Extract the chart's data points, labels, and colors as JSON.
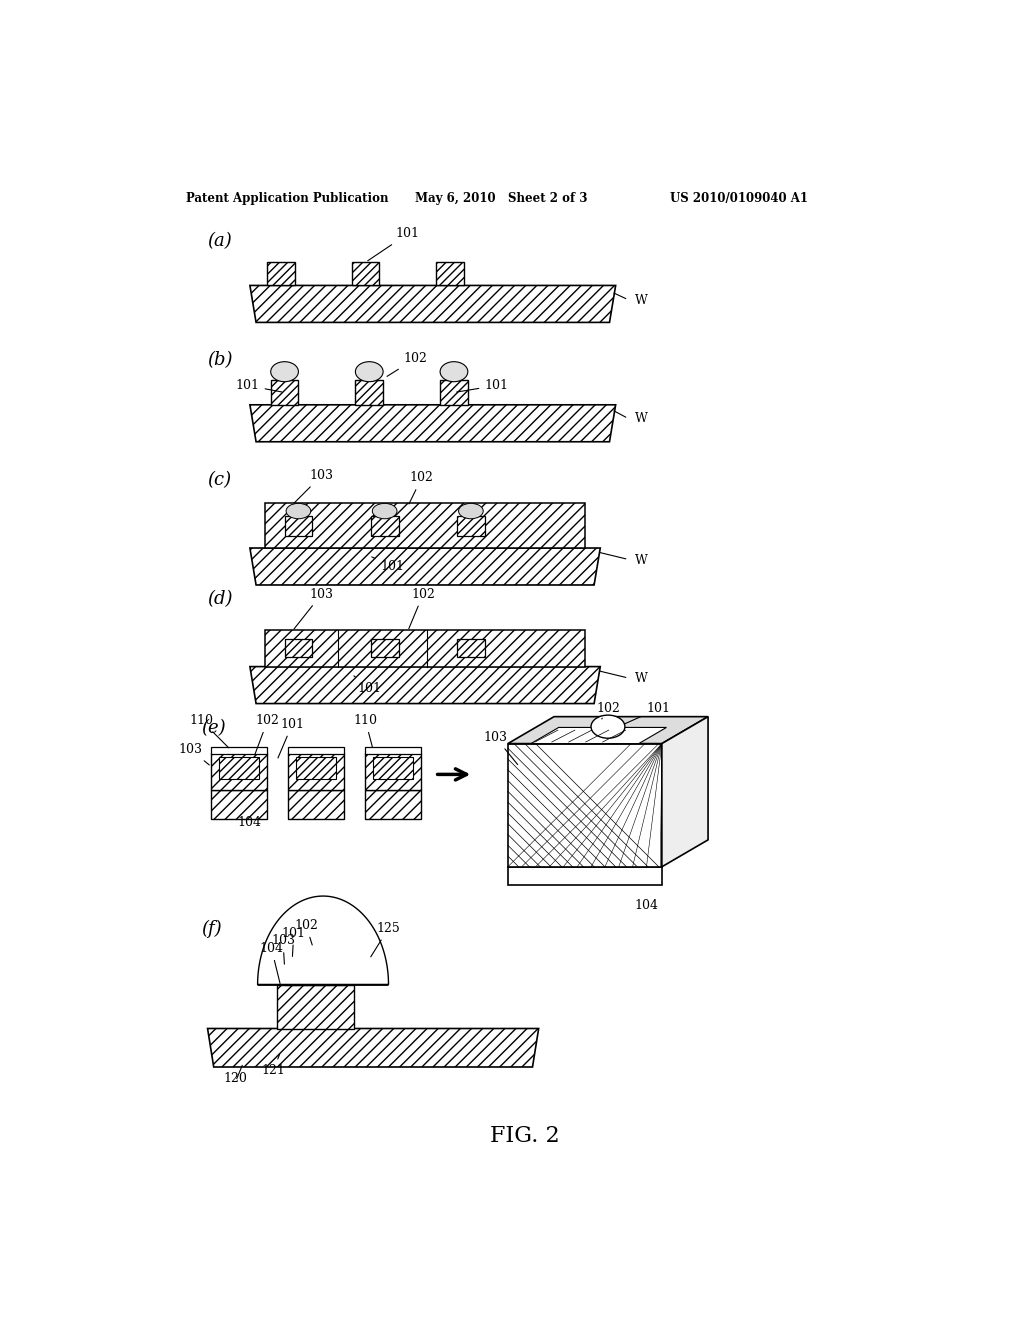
{
  "bg_color": "#ffffff",
  "header_left": "Patent Application Publication",
  "header_mid": "May 6, 2010   Sheet 2 of 3",
  "header_right": "US 2010/0109040 A1",
  "fig_label": "FIG. 2"
}
